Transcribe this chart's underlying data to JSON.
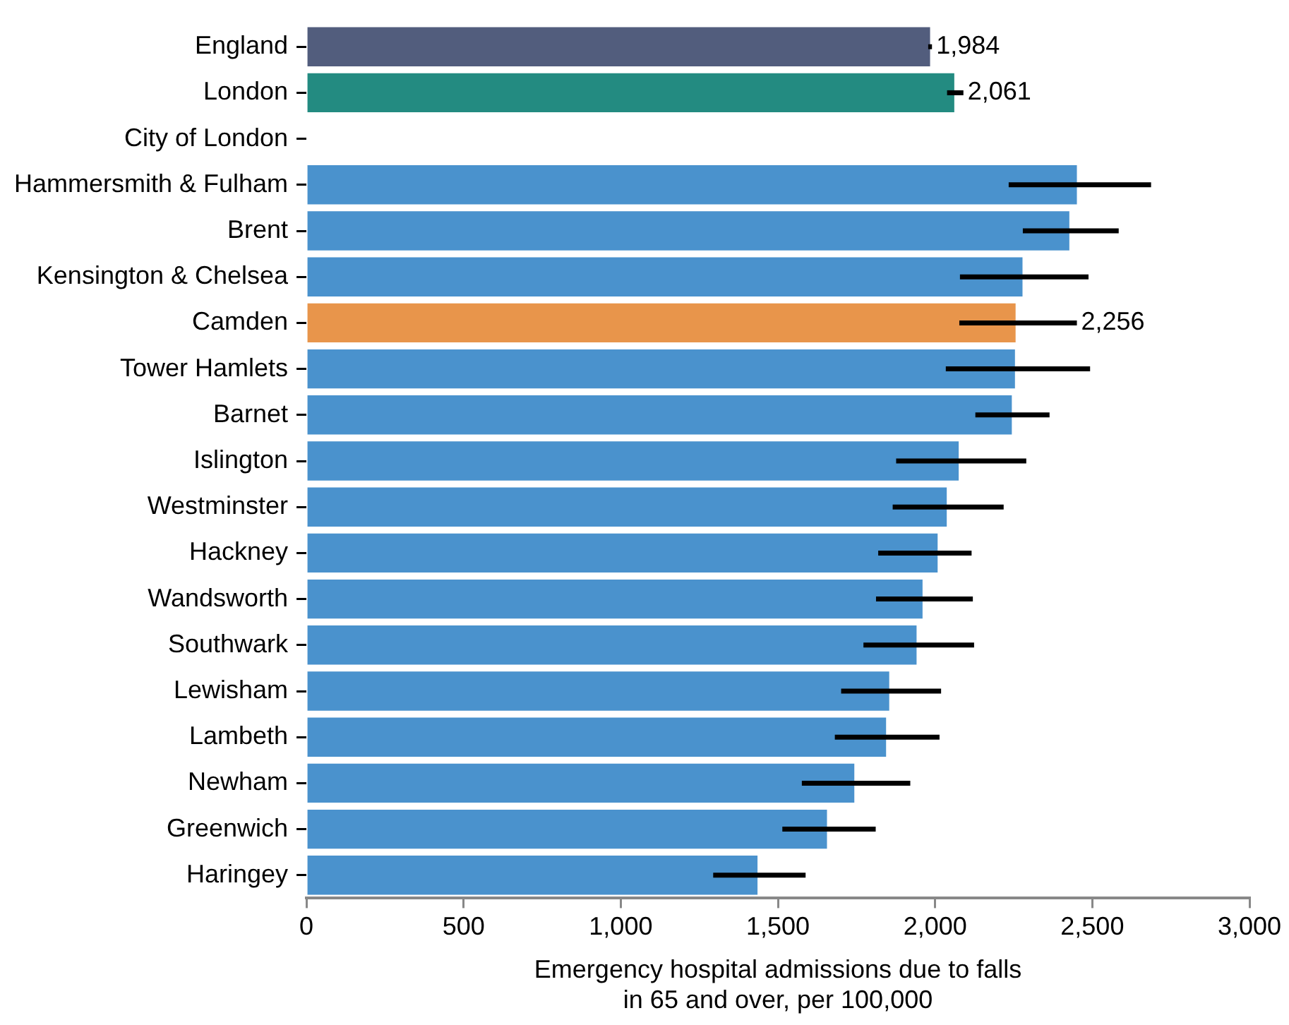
{
  "chart_data": {
    "type": "bar",
    "orientation": "horizontal",
    "xlabel": "Emergency hospital admissions due to falls\nin 65 and over, per 100,000",
    "categories": [
      "England",
      "London",
      "City of London",
      "Hammersmith & Fulham",
      "Brent",
      "Kensington & Chelsea",
      "Camden",
      "Tower Hamlets",
      "Barnet",
      "Islington",
      "Westminster",
      "Hackney",
      "Wandsworth",
      "Southwark",
      "Lewisham",
      "Lambeth",
      "Newham",
      "Greenwich",
      "Haringey"
    ],
    "values": [
      1984,
      2061,
      null,
      2451,
      2427,
      2278,
      2256,
      2254,
      2244,
      2075,
      2037,
      2008,
      1960,
      1941,
      1854,
      1844,
      1743,
      1656,
      1435
    ],
    "colors": [
      "#525d7d",
      "#238b81",
      "#4a92cd",
      "#4a92cd",
      "#4a92cd",
      "#4a92cd",
      "#e8954b",
      "#4a92cd",
      "#4a92cd",
      "#4a92cd",
      "#4a92cd",
      "#4a92cd",
      "#4a92cd",
      "#4a92cd",
      "#4a92cd",
      "#4a92cd",
      "#4a92cd",
      "#4a92cd",
      "#4a92cd"
    ],
    "errors": [
      [
        1978,
        1990
      ],
      [
        2038,
        2090
      ],
      null,
      [
        2234,
        2687
      ],
      [
        2279,
        2584
      ],
      [
        2079,
        2488
      ],
      [
        2077,
        2451
      ],
      [
        2034,
        2493
      ],
      [
        2128,
        2364
      ],
      [
        1876,
        2290
      ],
      [
        1865,
        2218
      ],
      [
        1819,
        2116
      ],
      [
        1812,
        2120
      ],
      [
        1772,
        2124
      ],
      [
        1701,
        2019
      ],
      [
        1681,
        2014
      ],
      [
        1576,
        1921
      ],
      [
        1514,
        1811
      ],
      [
        1294,
        1588
      ]
    ],
    "value_labels": [
      "1,984",
      "2,061",
      null,
      null,
      null,
      null,
      "2,256",
      null,
      null,
      null,
      null,
      null,
      null,
      null,
      null,
      null,
      null,
      null,
      null
    ],
    "xlim": [
      0,
      3000
    ],
    "xticks": [
      0,
      500,
      {
        "value": 1000,
        "label": "1,000"
      },
      {
        "value": 1500,
        "label": "1,500"
      },
      {
        "value": 2000,
        "label": "2,000"
      },
      {
        "value": 2500,
        "label": "2,500"
      },
      {
        "value": 3000,
        "label": "3,000"
      }
    ],
    "grid": false,
    "legend": false
  }
}
